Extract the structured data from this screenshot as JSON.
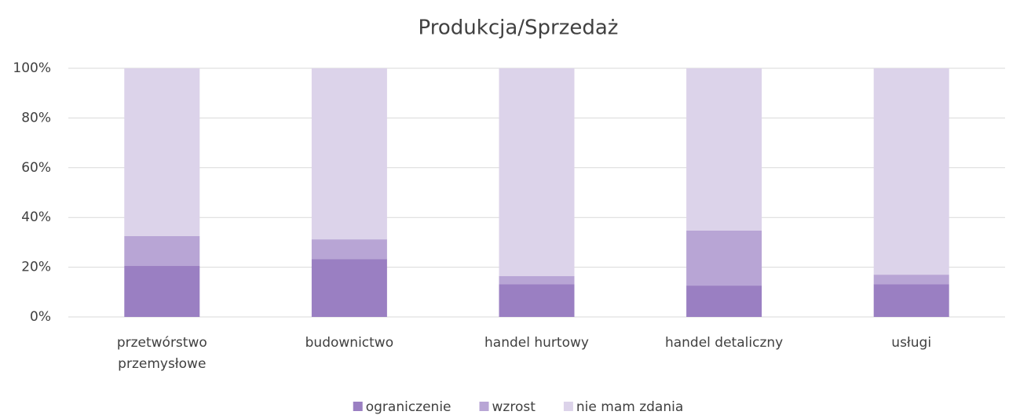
{
  "chart_data": {
    "type": "stacked_bar_percent",
    "title": "Produkcja/Sprzedaż",
    "categories": [
      "przetwórstwo przemysłowe",
      "budownictwo",
      "handel hurtowy",
      "handel detaliczny",
      "usługi"
    ],
    "series": [
      {
        "name": "ograniczenie",
        "color": "#9a7fc2",
        "values": [
          20.5,
          23.3,
          13.2,
          12.6,
          13.2
        ]
      },
      {
        "name": "wzrost",
        "color": "#b8a5d5",
        "values": [
          12,
          7.9,
          3.2,
          22.1,
          3.8
        ]
      },
      {
        "name": "nie mam zdania",
        "color": "#dcd3ea",
        "values": [
          67.5,
          68.8,
          83.6,
          65.3,
          83
        ]
      }
    ],
    "ylim": [
      0,
      100
    ],
    "yticks": [
      {
        "value": 0,
        "label": "0%"
      },
      {
        "value": 20,
        "label": "20%"
      },
      {
        "value": 40,
        "label": "40%"
      },
      {
        "value": 60,
        "label": "60%"
      },
      {
        "value": 80,
        "label": "80%"
      },
      {
        "value": 100,
        "label": "100%"
      }
    ],
    "grid": true,
    "legend": "bottom"
  }
}
